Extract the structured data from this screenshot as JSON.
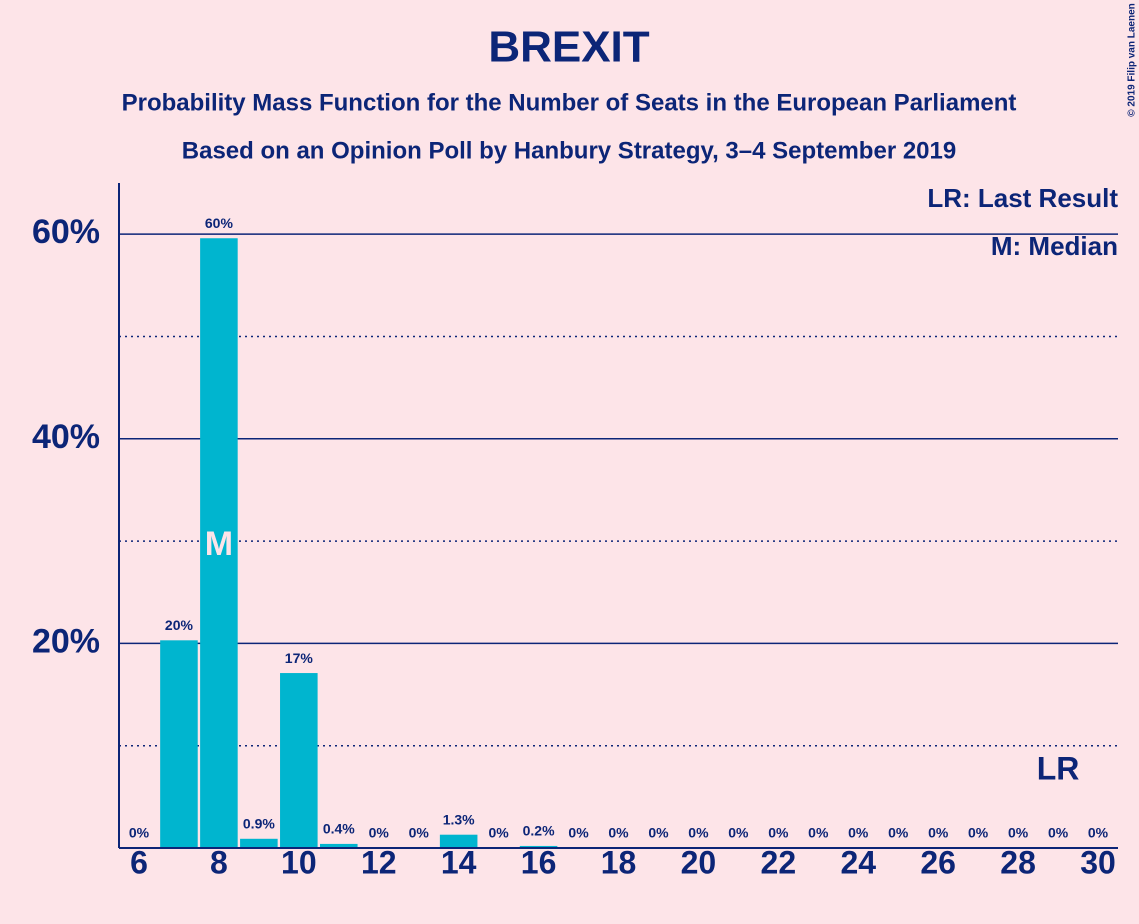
{
  "chart_data": {
    "type": "bar",
    "title": "BREXIT",
    "subtitle": "Probability Mass Function for the Number of Seats in the European Parliament",
    "subtitle2": "Based on an Opinion Poll by Hanbury Strategy, 3–4 September 2019",
    "copyright": "© 2019 Filip van Laenen",
    "legend": [
      "LR: Last Result",
      "M: Median"
    ],
    "x": [
      6,
      7,
      8,
      9,
      10,
      11,
      12,
      13,
      14,
      15,
      16,
      17,
      18,
      19,
      20,
      21,
      22,
      23,
      24,
      25,
      26,
      27,
      28,
      29,
      30
    ],
    "values": [
      0,
      20.3,
      59.6,
      0.9,
      17.1,
      0.4,
      0,
      0,
      1.3,
      0,
      0.2,
      0,
      0,
      0,
      0,
      0,
      0,
      0,
      0,
      0,
      0,
      0,
      0,
      0,
      0
    ],
    "value_labels": [
      "0%",
      "20%",
      "60%",
      "0.9%",
      "17%",
      "0.4%",
      "0%",
      "0%",
      "1.3%",
      "0%",
      "0.2%",
      "0%",
      "0%",
      "0%",
      "0%",
      "0%",
      "0%",
      "0%",
      "0%",
      "0%",
      "0%",
      "0%",
      "0%",
      "0%",
      "0%"
    ],
    "color": "#00b5cf",
    "xlim": [
      5.5,
      30.5
    ],
    "xticks": [
      6,
      8,
      10,
      12,
      14,
      16,
      18,
      20,
      22,
      24,
      26,
      28,
      30
    ],
    "ylim": [
      0,
      65
    ],
    "yticks": [
      {
        "value": 20,
        "label": "20%"
      },
      {
        "value": 40,
        "label": "40%"
      },
      {
        "value": 60,
        "label": "60%"
      }
    ],
    "minor_yticks": [
      10,
      30,
      50
    ],
    "grid": true,
    "median": {
      "x": 8,
      "label": "M"
    },
    "last_result": {
      "x": 29,
      "label": "LR"
    }
  }
}
